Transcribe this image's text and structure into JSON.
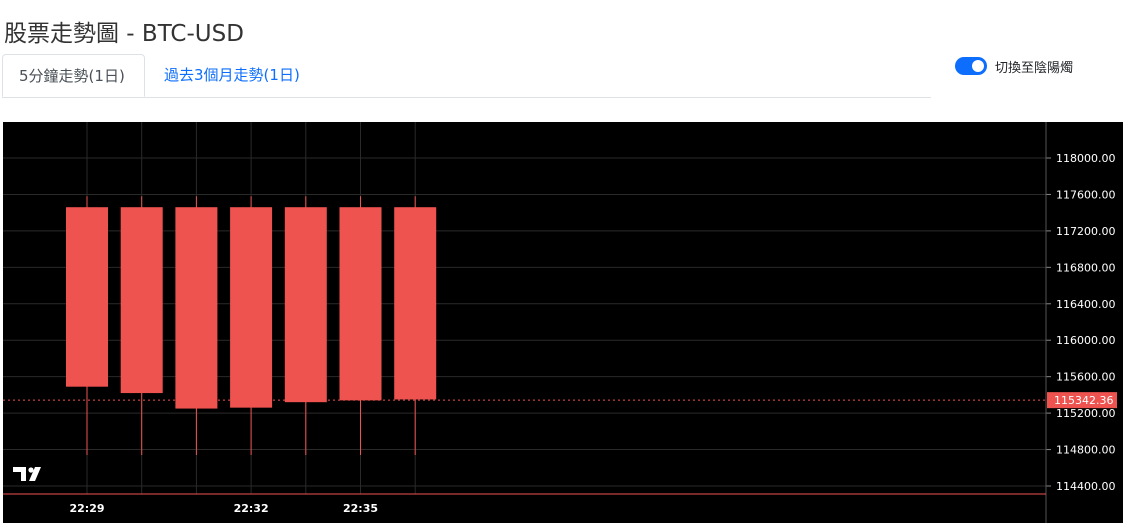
{
  "page": {
    "title": "股票走勢圖 - BTC-USD",
    "tabs": [
      {
        "label": "5分鐘走勢(1日)",
        "active": true
      },
      {
        "label": "過去3個月走勢(1日)",
        "active": false
      }
    ],
    "toggle": {
      "label": "切換至陰陽燭",
      "on": true
    }
  },
  "colors": {
    "candle": "#ef5350",
    "background": "#000000",
    "grid": "#2a2a2a",
    "axis_text": "#ffffff",
    "tab_link": "#0d6efd",
    "toggle_on": "#0d6efd"
  },
  "chart_data": {
    "type": "candlestick",
    "title": "",
    "xlabel": "",
    "ylabel": "",
    "ylim": [
      114300,
      118200
    ],
    "y_ticks": [
      "118000.00",
      "117600.00",
      "117200.00",
      "116800.00",
      "116400.00",
      "116000.00",
      "115600.00",
      "115200.00",
      "114800.00",
      "114400.00"
    ],
    "x_ticks": [
      "22:29",
      "22:32",
      "22:35"
    ],
    "candles": [
      {
        "open": 115490,
        "close": 117460,
        "high": 117580,
        "low": 114740
      },
      {
        "open": 115420,
        "close": 117460,
        "high": 117580,
        "low": 114740
      },
      {
        "open": 115250,
        "close": 117460,
        "high": 117580,
        "low": 114740
      },
      {
        "open": 115260,
        "close": 117460,
        "high": 117580,
        "low": 114740
      },
      {
        "open": 115320,
        "close": 117460,
        "high": 117580,
        "low": 114740
      },
      {
        "open": 115340,
        "close": 117460,
        "high": 117580,
        "low": 114740
      },
      {
        "open": 115350,
        "close": 117460,
        "high": 117580,
        "low": 114740
      }
    ],
    "last_price": {
      "label": "115342.36",
      "value": 115342.36
    },
    "grid": true,
    "watermark": "TV"
  }
}
